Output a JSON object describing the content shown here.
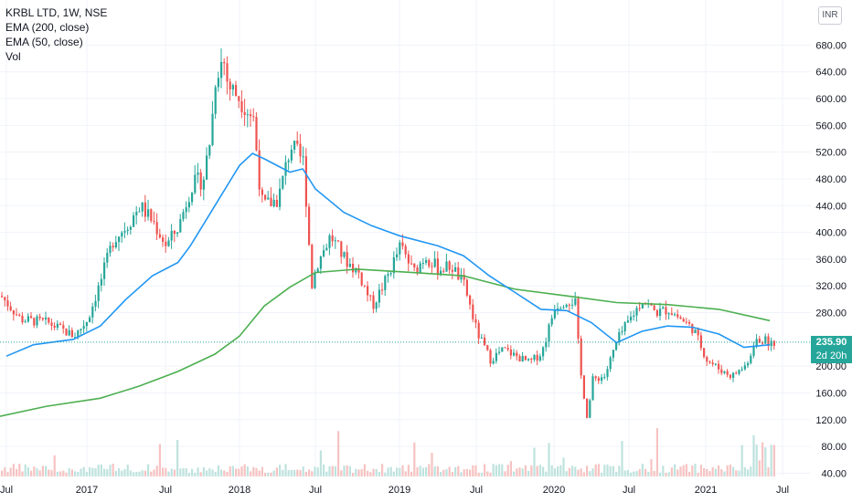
{
  "legend": {
    "symbol": "KRBL LTD, 1W, NSE",
    "ema200": "EMA (200, close)",
    "ema50": "EMA (50, close)",
    "vol": "Vol"
  },
  "currency": "INR",
  "last_price": "235.90",
  "countdown": "2d 20h",
  "colors": {
    "up": "#26a69a",
    "down": "#ef5350",
    "ema50": "#2196f3",
    "ema200": "#4caf50",
    "grid": "#f0f3fa",
    "axis_text": "#131722"
  },
  "chart_data": {
    "type": "candlestick",
    "timeframe": "1W",
    "y_ticks": [
      "680.00",
      "640.00",
      "600.00",
      "560.00",
      "520.00",
      "480.00",
      "440.00",
      "400.00",
      "360.00",
      "320.00",
      "280.00",
      "200.00",
      "160.00",
      "120.00",
      "80.00",
      "40.00"
    ],
    "y_top_partial": "7",
    "x_ticks": [
      "Jul",
      "2017",
      "Jul",
      "2018",
      "Jul",
      "2019",
      "Jul",
      "2020",
      "Jul",
      "2021",
      "Jul"
    ],
    "ylim": [
      32,
      722
    ],
    "grid": true,
    "price_series": [
      {
        "date": "2016-06",
        "value": 305
      },
      {
        "date": "2016-08",
        "value": 270
      },
      {
        "date": "2016-10",
        "value": 265
      },
      {
        "date": "2016-12",
        "value": 245
      },
      {
        "date": "2017-01",
        "value": 270
      },
      {
        "date": "2017-02",
        "value": 330
      },
      {
        "date": "2017-03",
        "value": 390
      },
      {
        "date": "2017-04",
        "value": 410
      },
      {
        "date": "2017-05",
        "value": 440
      },
      {
        "date": "2017-06",
        "value": 415
      },
      {
        "date": "2017-07",
        "value": 380
      },
      {
        "date": "2017-08",
        "value": 410
      },
      {
        "date": "2017-09",
        "value": 470
      },
      {
        "date": "2017-10",
        "value": 480
      },
      {
        "date": "2017-10-20",
        "value": 550
      },
      {
        "date": "2017-11",
        "value": 640
      },
      {
        "date": "2017-11-20",
        "value": 660
      },
      {
        "date": "2017-12",
        "value": 620
      },
      {
        "date": "2018-01",
        "value": 600
      },
      {
        "date": "2018-02",
        "value": 570
      },
      {
        "date": "2018-02-20",
        "value": 445
      },
      {
        "date": "2018-03",
        "value": 440
      },
      {
        "date": "2018-04",
        "value": 450
      },
      {
        "date": "2018-05",
        "value": 530
      },
      {
        "date": "2018-06",
        "value": 505
      },
      {
        "date": "2018-06-20",
        "value": 320
      },
      {
        "date": "2018-07",
        "value": 350
      },
      {
        "date": "2018-08",
        "value": 395
      },
      {
        "date": "2018-09",
        "value": 360
      },
      {
        "date": "2018-10",
        "value": 340
      },
      {
        "date": "2018-11",
        "value": 290
      },
      {
        "date": "2018-12",
        "value": 330
      },
      {
        "date": "2019-01",
        "value": 380
      },
      {
        "date": "2019-02",
        "value": 340
      },
      {
        "date": "2019-03",
        "value": 365
      },
      {
        "date": "2019-04",
        "value": 345
      },
      {
        "date": "2019-05",
        "value": 350
      },
      {
        "date": "2019-06",
        "value": 320
      },
      {
        "date": "2019-07",
        "value": 250
      },
      {
        "date": "2019-08",
        "value": 210
      },
      {
        "date": "2019-09",
        "value": 225
      },
      {
        "date": "2019-10",
        "value": 215
      },
      {
        "date": "2019-11",
        "value": 205
      },
      {
        "date": "2019-12",
        "value": 220
      },
      {
        "date": "2020-01",
        "value": 290
      },
      {
        "date": "2020-02",
        "value": 300
      },
      {
        "date": "2020-02-20",
        "value": 295
      },
      {
        "date": "2020-03",
        "value": 200
      },
      {
        "date": "2020-03-20",
        "value": 120
      },
      {
        "date": "2020-04",
        "value": 180
      },
      {
        "date": "2020-05",
        "value": 185
      },
      {
        "date": "2020-06",
        "value": 240
      },
      {
        "date": "2020-07",
        "value": 270
      },
      {
        "date": "2020-08",
        "value": 300
      },
      {
        "date": "2020-09",
        "value": 280
      },
      {
        "date": "2020-10",
        "value": 285
      },
      {
        "date": "2020-11",
        "value": 270
      },
      {
        "date": "2020-12",
        "value": 255
      },
      {
        "date": "2021-01",
        "value": 210
      },
      {
        "date": "2021-02",
        "value": 195
      },
      {
        "date": "2021-03",
        "value": 185
      },
      {
        "date": "2021-04",
        "value": 200
      },
      {
        "date": "2021-05",
        "value": 240
      },
      {
        "date": "2021-06",
        "value": 235.9
      }
    ],
    "ema50_series": [
      {
        "date": "2016-07",
        "value": 215
      },
      {
        "date": "2016-09",
        "value": 232
      },
      {
        "date": "2016-12",
        "value": 240
      },
      {
        "date": "2017-02",
        "value": 260
      },
      {
        "date": "2017-04",
        "value": 300
      },
      {
        "date": "2017-06",
        "value": 335
      },
      {
        "date": "2017-08",
        "value": 355
      },
      {
        "date": "2017-09",
        "value": 380
      },
      {
        "date": "2017-11",
        "value": 440
      },
      {
        "date": "2018-01",
        "value": 500
      },
      {
        "date": "2018-02",
        "value": 518
      },
      {
        "date": "2018-03",
        "value": 510
      },
      {
        "date": "2018-05",
        "value": 490
      },
      {
        "date": "2018-06",
        "value": 495
      },
      {
        "date": "2018-07",
        "value": 465
      },
      {
        "date": "2018-09",
        "value": 430
      },
      {
        "date": "2018-11",
        "value": 410
      },
      {
        "date": "2019-01",
        "value": 395
      },
      {
        "date": "2019-04",
        "value": 380
      },
      {
        "date": "2019-06",
        "value": 365
      },
      {
        "date": "2019-08",
        "value": 335
      },
      {
        "date": "2019-10",
        "value": 310
      },
      {
        "date": "2019-12",
        "value": 285
      },
      {
        "date": "2020-02",
        "value": 283
      },
      {
        "date": "2020-04",
        "value": 265
      },
      {
        "date": "2020-06",
        "value": 235
      },
      {
        "date": "2020-08",
        "value": 252
      },
      {
        "date": "2020-10",
        "value": 260
      },
      {
        "date": "2020-12",
        "value": 258
      },
      {
        "date": "2021-02",
        "value": 248
      },
      {
        "date": "2021-04",
        "value": 228
      },
      {
        "date": "2021-06",
        "value": 232
      }
    ],
    "ema200_series": [
      {
        "date": "2016-06",
        "value": 125
      },
      {
        "date": "2016-10",
        "value": 140
      },
      {
        "date": "2017-02",
        "value": 152
      },
      {
        "date": "2017-05",
        "value": 170
      },
      {
        "date": "2017-08",
        "value": 192
      },
      {
        "date": "2017-11",
        "value": 218
      },
      {
        "date": "2018-01",
        "value": 245
      },
      {
        "date": "2018-03",
        "value": 290
      },
      {
        "date": "2018-05",
        "value": 318
      },
      {
        "date": "2018-07",
        "value": 340
      },
      {
        "date": "2018-10",
        "value": 345
      },
      {
        "date": "2019-02",
        "value": 340
      },
      {
        "date": "2019-06",
        "value": 335
      },
      {
        "date": "2019-10",
        "value": 315
      },
      {
        "date": "2020-02",
        "value": 305
      },
      {
        "date": "2020-06",
        "value": 295
      },
      {
        "date": "2020-10",
        "value": 292
      },
      {
        "date": "2021-02",
        "value": 285
      },
      {
        "date": "2021-06",
        "value": 268
      }
    ],
    "last_value": 235.9
  }
}
